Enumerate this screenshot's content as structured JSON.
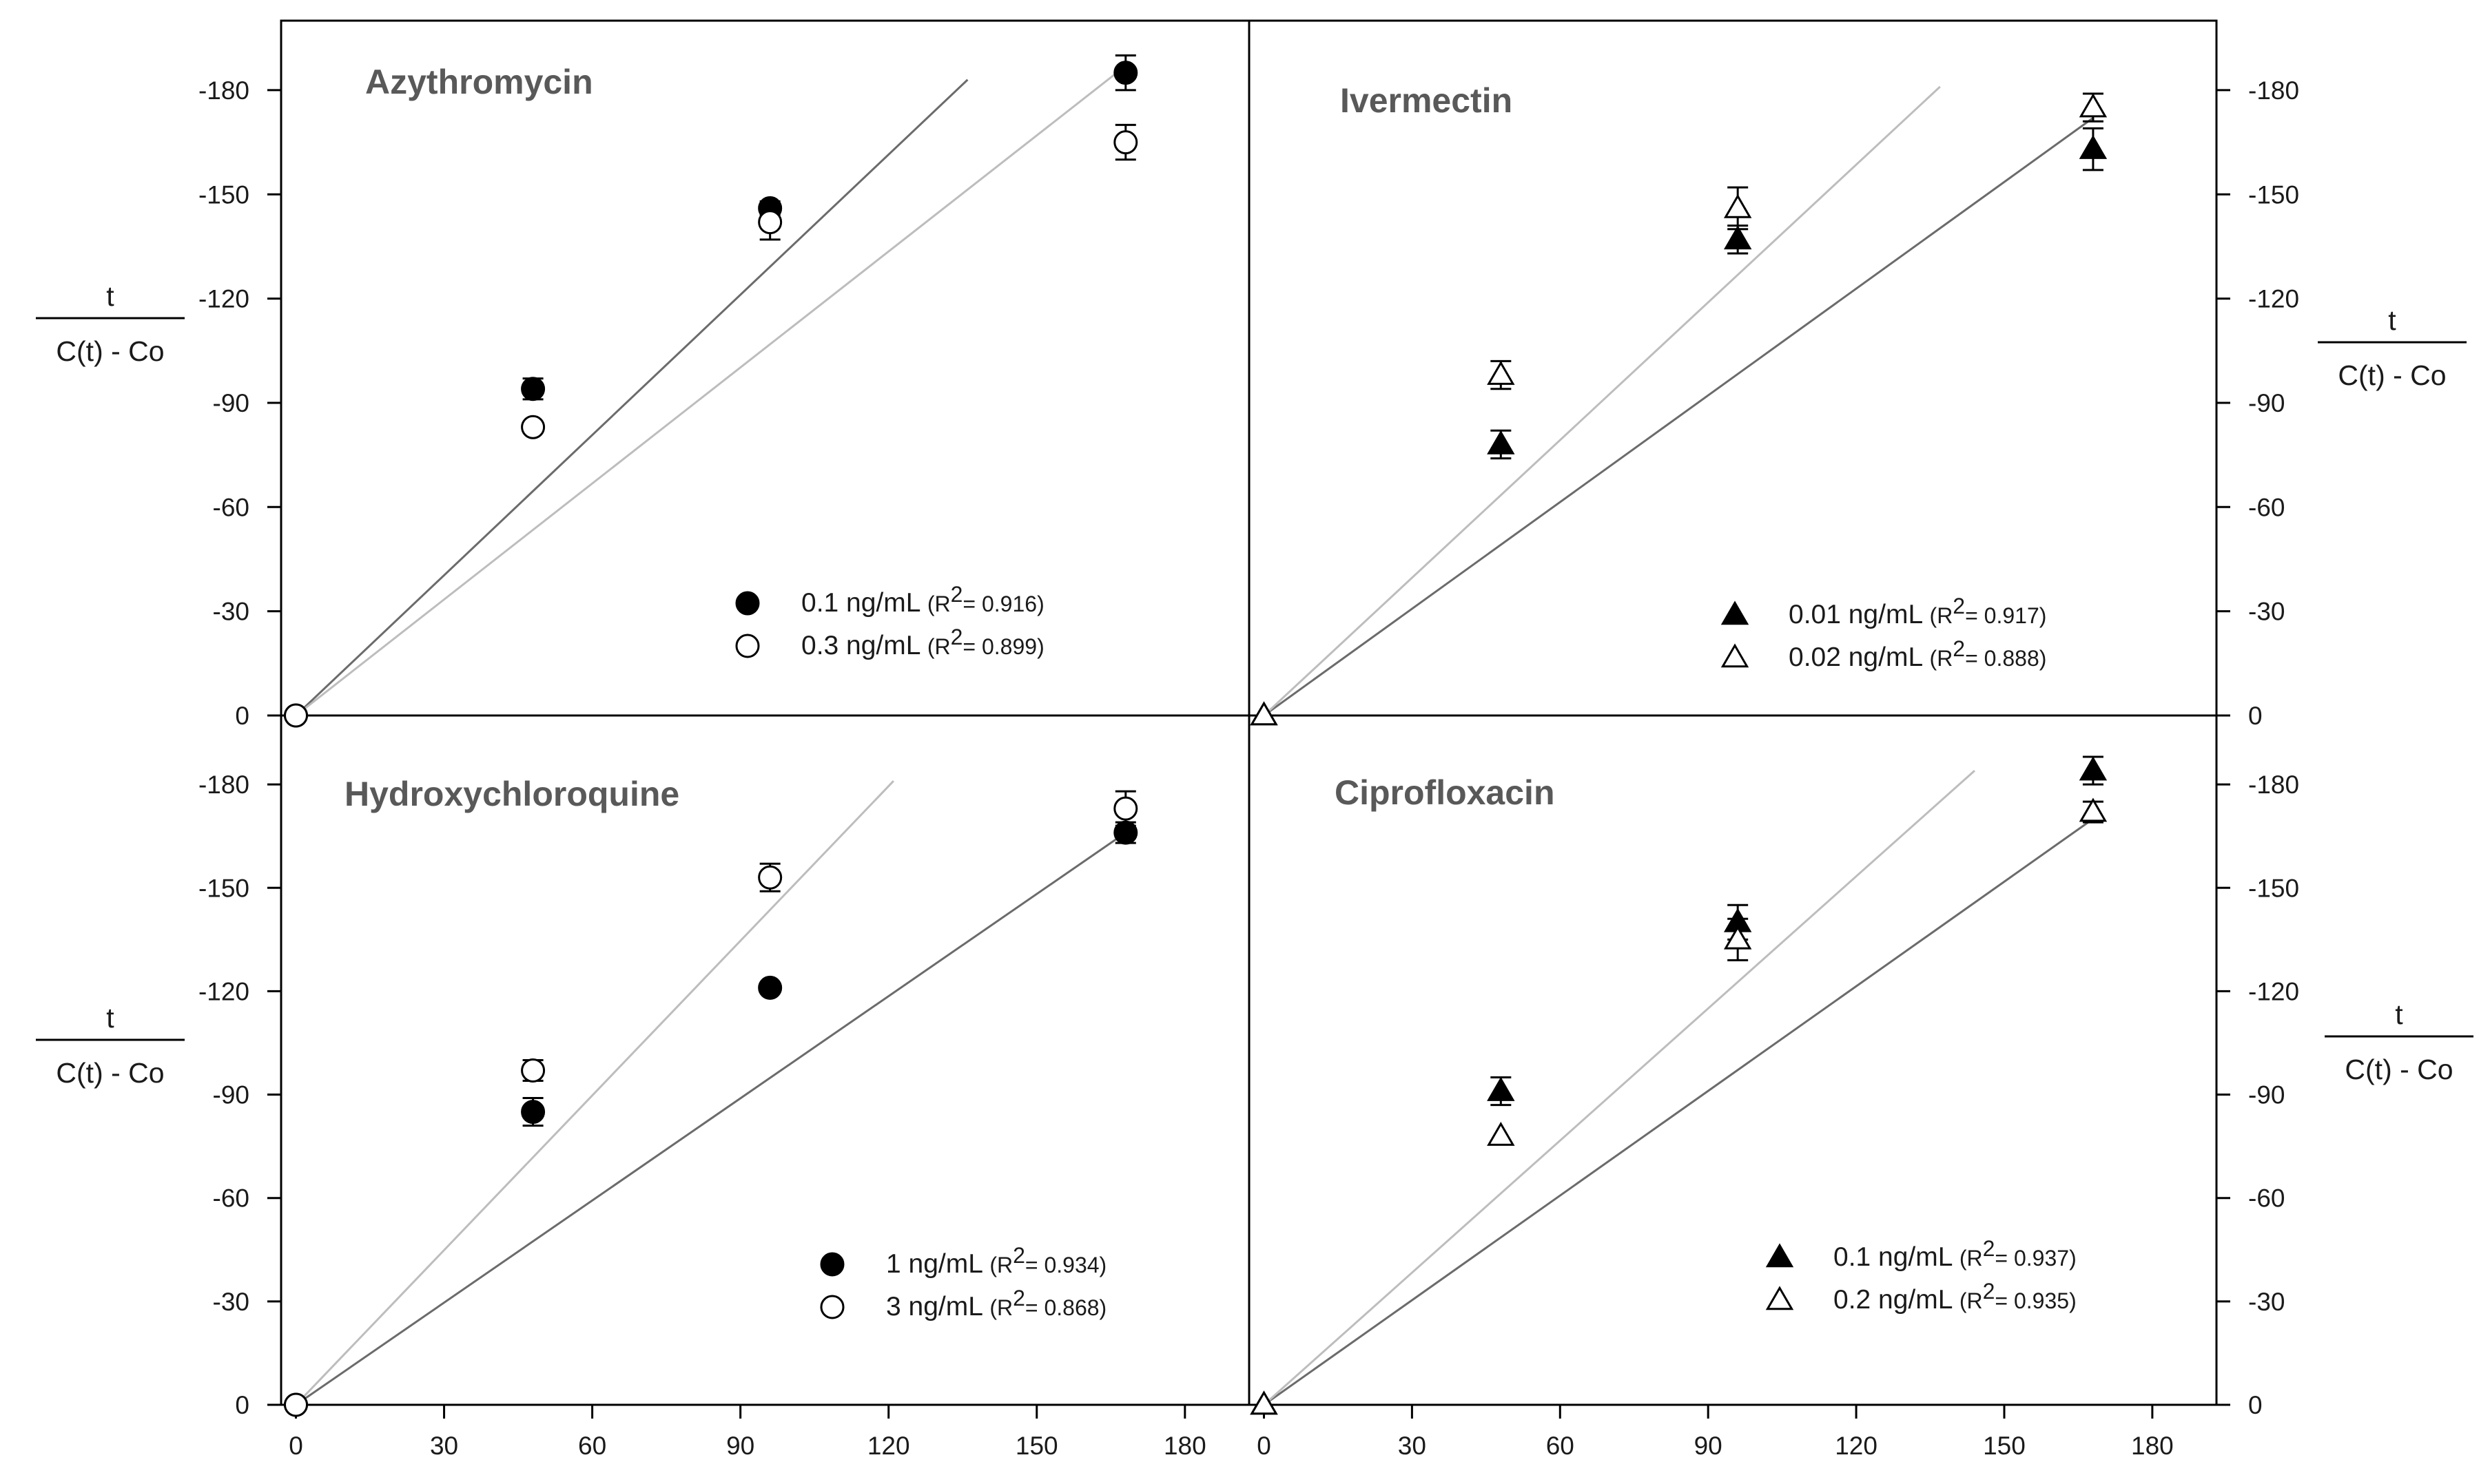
{
  "figure": {
    "y_axis_label": {
      "numerator": "t",
      "denominator": "C(t) - Co"
    }
  },
  "chart_data": [
    {
      "type": "scatter",
      "title": "Azythromycin",
      "xlim": [
        -3,
        193
      ],
      "ylim": [
        0,
        -200
      ],
      "x_ticks": [],
      "y_ticks": [
        0,
        -30,
        -60,
        -90,
        -120,
        -150,
        -180
      ],
      "y_axis_side": "left",
      "legend_position": "bottom-right",
      "series": [
        {
          "name": "0.1 ng/mL",
          "r2": "0.916",
          "marker": "circle",
          "filled": true,
          "points": [
            {
              "x": 0,
              "y": 0,
              "err": 0
            },
            {
              "x": 48,
              "y": -94,
              "err": 3
            },
            {
              "x": 96,
              "y": -146,
              "err": 2
            },
            {
              "x": 168,
              "y": -185,
              "err": 5
            }
          ],
          "fit": {
            "x": [
              0,
              136
            ],
            "y": [
              0,
              -183
            ]
          }
        },
        {
          "name": "0.3 ng/mL",
          "r2": "0.899",
          "marker": "circle",
          "filled": false,
          "points": [
            {
              "x": 0,
              "y": 0,
              "err": 0
            },
            {
              "x": 48,
              "y": -83,
              "err": 0
            },
            {
              "x": 96,
              "y": -142,
              "err": 5
            },
            {
              "x": 168,
              "y": -165,
              "err": 5
            }
          ],
          "fit": {
            "x": [
              0,
              168
            ],
            "y": [
              0,
              -187
            ]
          }
        }
      ]
    },
    {
      "type": "scatter",
      "title": "Ivermectin",
      "xlim": [
        -3,
        193
      ],
      "ylim": [
        0,
        -200
      ],
      "x_ticks": [],
      "y_ticks": [
        0,
        -30,
        -60,
        -90,
        -120,
        -150,
        -180
      ],
      "y_axis_side": "right",
      "legend_position": "bottom-right",
      "series": [
        {
          "name": "0.01 ng/mL",
          "r2": "0.917",
          "marker": "triangle",
          "filled": true,
          "points": [
            {
              "x": 0,
              "y": 0,
              "err": 0
            },
            {
              "x": 48,
              "y": -78,
              "err": 4
            },
            {
              "x": 96,
              "y": -137,
              "err": 4
            },
            {
              "x": 168,
              "y": -163,
              "err": 6
            }
          ],
          "fit": {
            "x": [
              0,
              168
            ],
            "y": [
              0,
              -172
            ]
          }
        },
        {
          "name": "0.02 ng/mL",
          "r2": "0.888",
          "marker": "triangle",
          "filled": false,
          "points": [
            {
              "x": 0,
              "y": 0,
              "err": 0
            },
            {
              "x": 48,
              "y": -98,
              "err": 4
            },
            {
              "x": 96,
              "y": -146,
              "err": 6
            },
            {
              "x": 168,
              "y": -175,
              "err": 4
            }
          ],
          "fit": {
            "x": [
              0,
              137
            ],
            "y": [
              0,
              -181
            ]
          }
        }
      ]
    },
    {
      "type": "scatter",
      "title": "Hydroxychloroquine",
      "xlim": [
        -3,
        193
      ],
      "ylim": [
        0,
        -200
      ],
      "x_ticks": [
        0,
        30,
        60,
        90,
        120,
        150,
        180
      ],
      "y_ticks": [
        0,
        -30,
        -60,
        -90,
        -120,
        -150,
        -180
      ],
      "y_axis_side": "left",
      "legend_position": "bottom-right",
      "series": [
        {
          "name": "1 ng/mL",
          "r2": "0.934",
          "marker": "circle",
          "filled": true,
          "points": [
            {
              "x": 0,
              "y": 0,
              "err": 0
            },
            {
              "x": 48,
              "y": -85,
              "err": 4
            },
            {
              "x": 96,
              "y": -121,
              "err": 0
            },
            {
              "x": 168,
              "y": -166,
              "err": 3
            }
          ],
          "fit": {
            "x": [
              0,
              168
            ],
            "y": [
              0,
              -166
            ]
          }
        },
        {
          "name": "3 ng/mL",
          "r2": "0.868",
          "marker": "circle",
          "filled": false,
          "points": [
            {
              "x": 0,
              "y": 0,
              "err": 0
            },
            {
              "x": 48,
              "y": -97,
              "err": 3
            },
            {
              "x": 96,
              "y": -153,
              "err": 4
            },
            {
              "x": 168,
              "y": -173,
              "err": 5
            }
          ],
          "fit": {
            "x": [
              0,
              121
            ],
            "y": [
              0,
              -181
            ]
          }
        }
      ]
    },
    {
      "type": "scatter",
      "title": "Ciprofloxacin",
      "xlim": [
        -3,
        193
      ],
      "ylim": [
        0,
        -200
      ],
      "x_ticks": [
        0,
        30,
        60,
        90,
        120,
        150,
        180
      ],
      "y_ticks": [
        0,
        -30,
        -60,
        -90,
        -120,
        -150,
        -180
      ],
      "y_axis_side": "right",
      "legend_position": "bottom-right",
      "series": [
        {
          "name": "0.1 ng/mL",
          "r2": "0.937",
          "marker": "triangle",
          "filled": true,
          "points": [
            {
              "x": 0,
              "y": 0,
              "err": 0
            },
            {
              "x": 48,
              "y": -91,
              "err": 4
            },
            {
              "x": 96,
              "y": -140,
              "err": 5
            },
            {
              "x": 168,
              "y": -184,
              "err": 4
            }
          ],
          "fit": {
            "x": [
              0,
              168
            ],
            "y": [
              0,
              -170
            ]
          }
        },
        {
          "name": "0.2 ng/mL",
          "r2": "0.935",
          "marker": "triangle",
          "filled": false,
          "points": [
            {
              "x": 0,
              "y": 0,
              "err": 0
            },
            {
              "x": 48,
              "y": -78,
              "err": 0
            },
            {
              "x": 96,
              "y": -135,
              "err": 6
            },
            {
              "x": 168,
              "y": -172,
              "err": 3
            }
          ],
          "fit": {
            "x": [
              0,
              144
            ],
            "y": [
              0,
              -184
            ]
          }
        }
      ]
    }
  ]
}
